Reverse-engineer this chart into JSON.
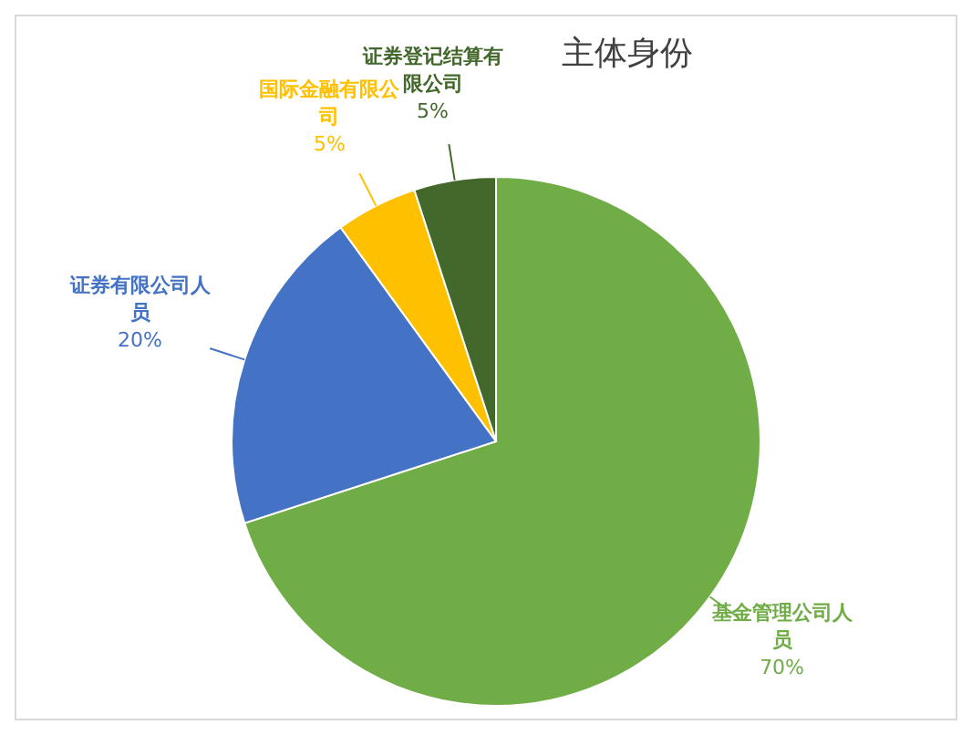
{
  "chart_data": {
    "type": "pie",
    "title": "主体身份",
    "categories": [
      "基金管理公司人员",
      "证券有限公司人员",
      "国际金融有限公司",
      "证券登记结算有限公司"
    ],
    "values": [
      70,
      20,
      5,
      5
    ],
    "value_labels": [
      "70%",
      "20%",
      "5%",
      "5%"
    ],
    "colors": [
      "#70ad47",
      "#4472c4",
      "#ffc000",
      "#43682b"
    ],
    "legend": false
  }
}
